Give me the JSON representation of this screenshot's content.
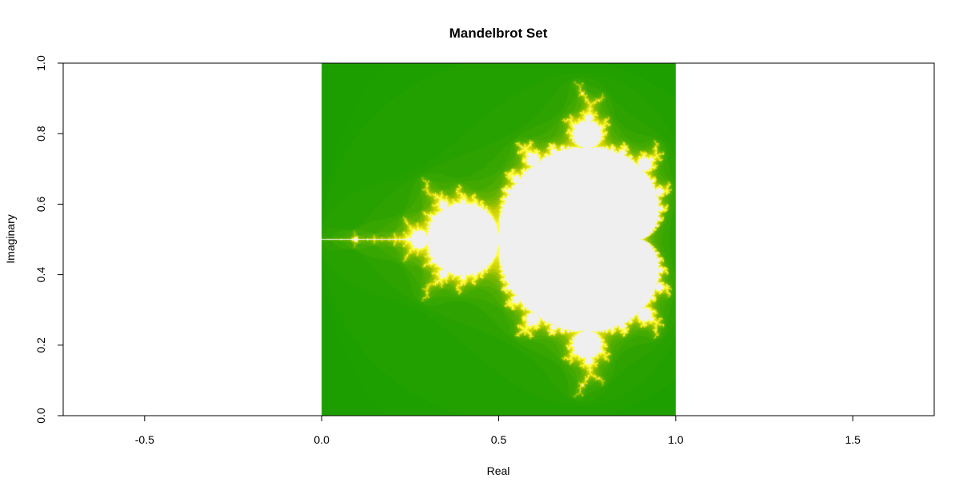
{
  "chart_data": {
    "type": "heatmap",
    "title": "Mandelbrot Set",
    "xlabel": "Real",
    "ylabel": "Imaginary",
    "xlim": [
      -0.73,
      1.73
    ],
    "ylim": [
      0.0,
      1.0
    ],
    "x_ticks": [
      -0.5,
      0.0,
      0.5,
      1.0,
      1.5
    ],
    "x_tick_labels": [
      "-0.5",
      "0.0",
      "0.5",
      "1.0",
      "1.5"
    ],
    "y_ticks": [
      0.0,
      0.2,
      0.4,
      0.6,
      0.8,
      1.0
    ],
    "y_tick_labels": [
      "0.0",
      "0.2",
      "0.4",
      "0.6",
      "0.8",
      "1.0"
    ],
    "image_extent": {
      "x": [
        0.0,
        1.0
      ],
      "y": [
        0.0,
        1.0
      ]
    },
    "mandelbrot_mapping": {
      "real_offset": -2.0,
      "real_scale": 2.5,
      "imag_offset": -1.25,
      "imag_scale": 2.5,
      "max_iterations": 80
    },
    "colors": {
      "inside_set": "#efefef",
      "escape_low": "#1c9e00",
      "escape_mid": "#c8d000",
      "escape_high": "#ffff40"
    },
    "grid": false,
    "legend": "none"
  }
}
